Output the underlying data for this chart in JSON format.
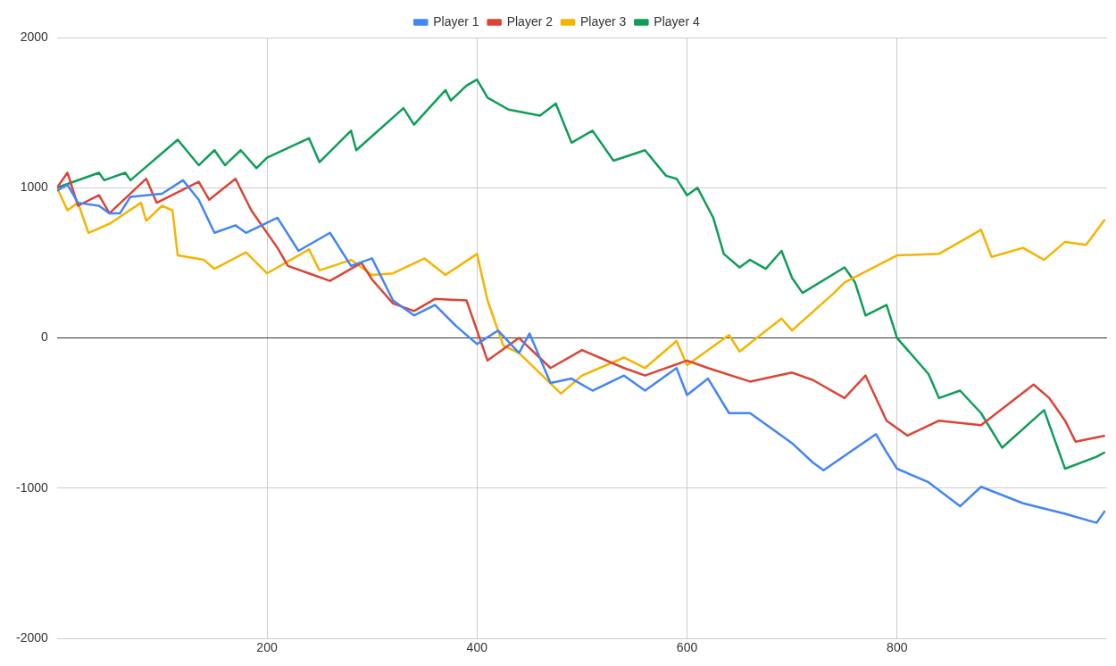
{
  "chart_data": {
    "type": "line",
    "xlim": [
      0,
      1000
    ],
    "xticks": [
      200,
      400,
      600,
      800
    ],
    "ylim": [
      -2000,
      2000
    ],
    "yticks": [
      -2000,
      -1000,
      0,
      1000,
      2000
    ],
    "grid": true,
    "legend": "top",
    "marker": "none",
    "line_style": "solid",
    "series": [
      {
        "name": "Player 1",
        "color": "#4285f4",
        "x": [
          0,
          10,
          20,
          40,
          50,
          60,
          70,
          100,
          120,
          135,
          150,
          170,
          180,
          210,
          230,
          260,
          280,
          300,
          320,
          340,
          360,
          380,
          400,
          420,
          440,
          450,
          470,
          490,
          510,
          540,
          560,
          590,
          600,
          620,
          640,
          660,
          680,
          700,
          720,
          730,
          780,
          790,
          800,
          830,
          860,
          880,
          920,
          960,
          990,
          998
        ],
        "values": [
          980,
          1020,
          900,
          880,
          830,
          830,
          940,
          960,
          1050,
          920,
          700,
          750,
          700,
          800,
          580,
          700,
          480,
          530,
          250,
          150,
          220,
          80,
          -40,
          50,
          -100,
          30,
          -300,
          -270,
          -350,
          -250,
          -350,
          -200,
          -380,
          -270,
          -500,
          -500,
          -600,
          -700,
          -830,
          -880,
          -640,
          -760,
          -870,
          -960,
          -1120,
          -990,
          -1100,
          -1170,
          -1230,
          -1150
        ]
      },
      {
        "name": "Player 2",
        "color": "#db4437",
        "x": [
          0,
          10,
          20,
          40,
          50,
          85,
          95,
          135,
          145,
          170,
          185,
          210,
          220,
          240,
          260,
          290,
          300,
          320,
          340,
          360,
          390,
          410,
          440,
          470,
          500,
          540,
          560,
          600,
          620,
          660,
          700,
          720,
          750,
          770,
          790,
          810,
          840,
          880,
          930,
          945,
          960,
          970,
          998
        ],
        "values": [
          1000,
          1100,
          880,
          950,
          830,
          1060,
          900,
          1040,
          920,
          1060,
          850,
          600,
          480,
          430,
          380,
          500,
          390,
          230,
          180,
          260,
          250,
          -150,
          0,
          -200,
          -80,
          -200,
          -250,
          -150,
          -200,
          -290,
          -230,
          -280,
          -400,
          -250,
          -550,
          -650,
          -550,
          -580,
          -310,
          -400,
          -550,
          -690,
          -650
        ]
      },
      {
        "name": "Player 3",
        "color": "#f4b400",
        "x": [
          0,
          10,
          20,
          30,
          50,
          80,
          85,
          100,
          110,
          115,
          140,
          150,
          180,
          200,
          240,
          250,
          280,
          300,
          320,
          350,
          370,
          400,
          410,
          425,
          440,
          480,
          500,
          540,
          560,
          590,
          600,
          640,
          650,
          690,
          700,
          740,
          750,
          800,
          840,
          880,
          890,
          920,
          940,
          960,
          980,
          998
        ],
        "values": [
          1000,
          850,
          900,
          700,
          760,
          900,
          780,
          880,
          850,
          550,
          520,
          460,
          570,
          430,
          590,
          450,
          520,
          420,
          430,
          530,
          420,
          560,
          250,
          -50,
          -100,
          -370,
          -250,
          -130,
          -200,
          -20,
          -180,
          20,
          -90,
          130,
          50,
          300,
          370,
          550,
          560,
          720,
          540,
          600,
          520,
          640,
          620,
          790
        ]
      },
      {
        "name": "Player 4",
        "color": "#0f9d58",
        "x": [
          0,
          40,
          45,
          65,
          70,
          115,
          135,
          150,
          160,
          175,
          190,
          200,
          240,
          250,
          280,
          285,
          330,
          340,
          370,
          375,
          390,
          400,
          410,
          430,
          460,
          475,
          490,
          510,
          530,
          560,
          580,
          590,
          600,
          610,
          625,
          635,
          650,
          660,
          675,
          690,
          700,
          710,
          750,
          760,
          770,
          790,
          800,
          830,
          840,
          860,
          880,
          900,
          940,
          960,
          990,
          998
        ],
        "values": [
          1000,
          1100,
          1050,
          1100,
          1050,
          1320,
          1150,
          1250,
          1150,
          1250,
          1130,
          1200,
          1330,
          1170,
          1380,
          1250,
          1530,
          1420,
          1650,
          1580,
          1680,
          1720,
          1600,
          1520,
          1480,
          1560,
          1300,
          1380,
          1180,
          1250,
          1080,
          1060,
          950,
          1000,
          800,
          560,
          470,
          520,
          460,
          580,
          400,
          300,
          470,
          370,
          150,
          220,
          0,
          -240,
          -400,
          -350,
          -500,
          -730,
          -480,
          -870,
          -790,
          -760
        ]
      }
    ]
  }
}
